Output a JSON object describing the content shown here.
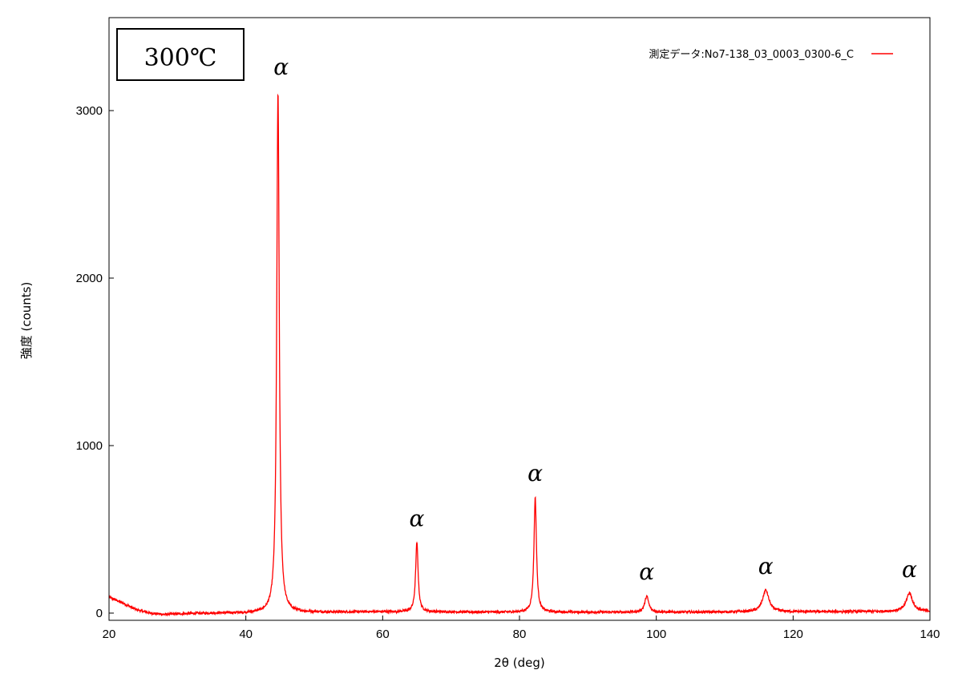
{
  "chart_data": {
    "type": "line",
    "title": "",
    "xlabel": "2θ (deg)",
    "ylabel": "強度 (counts)",
    "xlim": [
      20,
      140
    ],
    "ylim": [
      -30,
      3500
    ],
    "x_ticks": [
      20,
      40,
      60,
      80,
      100,
      120,
      140
    ],
    "y_ticks": [
      0,
      1000,
      2000,
      3000
    ],
    "grid": false,
    "line_color": "#ff0000",
    "legend": {
      "position": "top-right",
      "entries": [
        "測定データ:No7-138_03_0003_0300-6_C"
      ]
    },
    "inset_label": "300℃",
    "background_profile": [
      {
        "x": 20,
        "y": 95
      },
      {
        "x": 22,
        "y": 60
      },
      {
        "x": 24,
        "y": 20
      },
      {
        "x": 26,
        "y": 0
      },
      {
        "x": 28,
        "y": -8
      },
      {
        "x": 30,
        "y": -5
      },
      {
        "x": 35,
        "y": 0
      },
      {
        "x": 40,
        "y": 0
      },
      {
        "x": 50,
        "y": 5
      },
      {
        "x": 60,
        "y": 8
      },
      {
        "x": 80,
        "y": 5
      },
      {
        "x": 100,
        "y": 5
      },
      {
        "x": 120,
        "y": 8
      },
      {
        "x": 140,
        "y": 10
      }
    ],
    "peaks": [
      {
        "x": 44.7,
        "intensity": 3110,
        "label": "α"
      },
      {
        "x": 65.0,
        "intensity": 415,
        "label": "α"
      },
      {
        "x": 82.3,
        "intensity": 685,
        "label": "α"
      },
      {
        "x": 98.6,
        "intensity": 95,
        "label": "α"
      },
      {
        "x": 116.0,
        "intensity": 130,
        "label": "α"
      },
      {
        "x": 137.0,
        "intensity": 110,
        "label": "α"
      }
    ]
  }
}
